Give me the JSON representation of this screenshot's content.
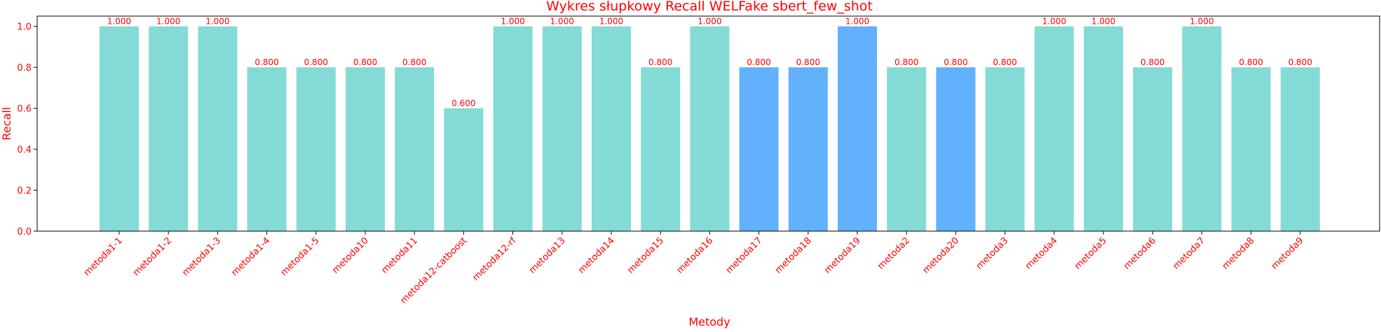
{
  "chart_data": {
    "type": "bar",
    "title": "Wykres słupkowy Recall WELFake sbert_few_shot",
    "xlabel": "Metody",
    "ylabel": "Recall",
    "ylim": [
      0,
      1.05
    ],
    "yticks": [
      0.0,
      0.2,
      0.4,
      0.6,
      0.8,
      1.0
    ],
    "ytick_labels": [
      "0.0",
      "0.2",
      "0.4",
      "0.6",
      "0.8",
      "1.0"
    ],
    "grid": false,
    "categories": [
      "metoda1-1",
      "metoda1-2",
      "metoda1-3",
      "metoda1-4",
      "metoda1-5",
      "metoda10",
      "metoda11",
      "metoda12-catboost",
      "metoda12-rf",
      "metoda13",
      "metoda14",
      "metoda15",
      "metoda16",
      "metoda17",
      "metoda18",
      "metoda19",
      "metoda2",
      "metoda20",
      "metoda3",
      "metoda4",
      "metoda5",
      "metoda6",
      "metoda7",
      "metoda8",
      "metoda9"
    ],
    "values": [
      1.0,
      1.0,
      1.0,
      0.8,
      0.8,
      0.8,
      0.8,
      0.6,
      1.0,
      1.0,
      1.0,
      0.8,
      1.0,
      0.8,
      0.8,
      1.0,
      0.8,
      0.8,
      0.8,
      1.0,
      1.0,
      0.8,
      1.0,
      0.8,
      0.8
    ],
    "value_labels": [
      "1.000",
      "1.000",
      "1.000",
      "0.800",
      "0.800",
      "0.800",
      "0.800",
      "0.600",
      "1.000",
      "1.000",
      "1.000",
      "0.800",
      "1.000",
      "0.800",
      "0.800",
      "1.000",
      "0.800",
      "0.800",
      "0.800",
      "1.000",
      "1.000",
      "0.800",
      "1.000",
      "0.800",
      "0.800"
    ],
    "bar_colors": [
      "#84dbd5",
      "#84dbd5",
      "#84dbd5",
      "#84dbd5",
      "#84dbd5",
      "#84dbd5",
      "#84dbd5",
      "#84dbd5",
      "#84dbd5",
      "#84dbd5",
      "#84dbd5",
      "#84dbd5",
      "#84dbd5",
      "#62b1fc",
      "#62b1fc",
      "#62b1fc",
      "#84dbd5",
      "#62b1fc",
      "#84dbd5",
      "#84dbd5",
      "#84dbd5",
      "#84dbd5",
      "#84dbd5",
      "#84dbd5",
      "#84dbd5"
    ],
    "text_color": "#ff0000",
    "axis_color": "#000000"
  }
}
